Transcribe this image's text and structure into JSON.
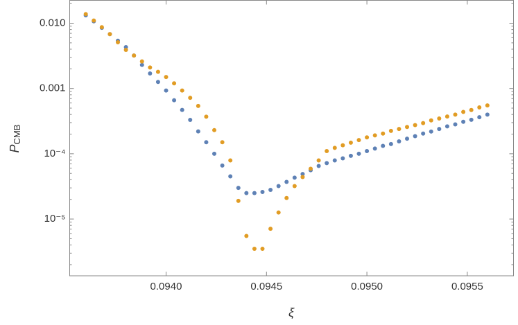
{
  "chart_data": {
    "type": "scatter",
    "xlabel": "ξ",
    "ylabel": {
      "main": "P",
      "sub": "CMB"
    },
    "log_y": true,
    "xlim": [
      0.09352,
      0.09573
    ],
    "ylim": [
      1.35e-06,
      0.0224
    ],
    "xticks": [
      {
        "value": 0.094,
        "label": "0.0940"
      },
      {
        "value": 0.0945,
        "label": "0.0945"
      },
      {
        "value": 0.095,
        "label": "0.0950"
      },
      {
        "value": 0.0955,
        "label": "0.0955"
      }
    ],
    "yticks": [
      {
        "value": 0.01,
        "label": "0.010"
      },
      0.001,
      {
        "value": 0.0001,
        "label": "10⁻⁴"
      },
      {
        "value": 1e-05,
        "label": "10⁻⁵"
      }
    ],
    "x": [
      0.0936,
      0.09364,
      0.09368,
      0.09372,
      0.09376,
      0.0938,
      0.09384,
      0.09388,
      0.09392,
      0.09396,
      0.094,
      0.09404,
      0.09408,
      0.09412,
      0.09416,
      0.0942,
      0.09424,
      0.09428,
      0.09432,
      0.09436,
      0.0944,
      0.09444,
      0.09448,
      0.09452,
      0.09456,
      0.0946,
      0.09464,
      0.09468,
      0.09472,
      0.09476,
      0.0948,
      0.09484,
      0.09488,
      0.09492,
      0.09496,
      0.095,
      0.09504,
      0.09508,
      0.09512,
      0.09516,
      0.0952,
      0.09524,
      0.09528,
      0.09532,
      0.09536,
      0.0954,
      0.09544,
      0.09548,
      0.09552,
      0.09556,
      0.0956
    ],
    "series": [
      {
        "color": "#5e81b5",
        "values": [
          0.0132,
          0.0107,
          0.0085,
          0.0068,
          0.0054,
          0.0043,
          0.0032,
          0.0023,
          0.0017,
          0.00126,
          0.00093,
          0.00066,
          0.00047,
          0.00033,
          0.00022,
          0.00015,
          0.0001,
          6.6e-05,
          4.5e-05,
          3e-05,
          2.5e-05,
          2.5e-05,
          2.6e-05,
          2.8e-05,
          3.2e-05,
          3.7e-05,
          4.3e-05,
          4.9e-05,
          5.6e-05,
          6.5e-05,
          7.2e-05,
          7.9e-05,
          8.5e-05,
          9.3e-05,
          0.0001,
          0.00011,
          0.00012,
          0.000132,
          0.000141,
          0.000155,
          0.00017,
          0.000186,
          0.000204,
          0.000219,
          0.00024,
          0.000263,
          0.000282,
          0.000309,
          0.000331,
          0.000363,
          0.000398
        ]
      },
      {
        "color": "#e19c24",
        "values": [
          0.0138,
          0.011,
          0.0087,
          0.0068,
          0.0051,
          0.0039,
          0.0032,
          0.0026,
          0.0021,
          0.0018,
          0.0015,
          0.0012,
          0.00093,
          0.00072,
          0.00054,
          0.00037,
          0.00023,
          0.00015,
          7.9e-05,
          1.9e-05,
          5.5e-06,
          3.5e-06,
          3.5e-06,
          7.1e-06,
          1.26e-05,
          2.1e-05,
          3.2e-05,
          4.4e-05,
          5.9e-05,
          7.9e-05,
          0.00011,
          0.000123,
          0.000135,
          0.000148,
          0.000162,
          0.000178,
          0.000191,
          0.000204,
          0.000224,
          0.00024,
          0.000257,
          0.000275,
          0.000295,
          0.000324,
          0.000347,
          0.000372,
          0.000398,
          0.000437,
          0.000468,
          0.000513,
          0.00055
        ]
      }
    ]
  }
}
